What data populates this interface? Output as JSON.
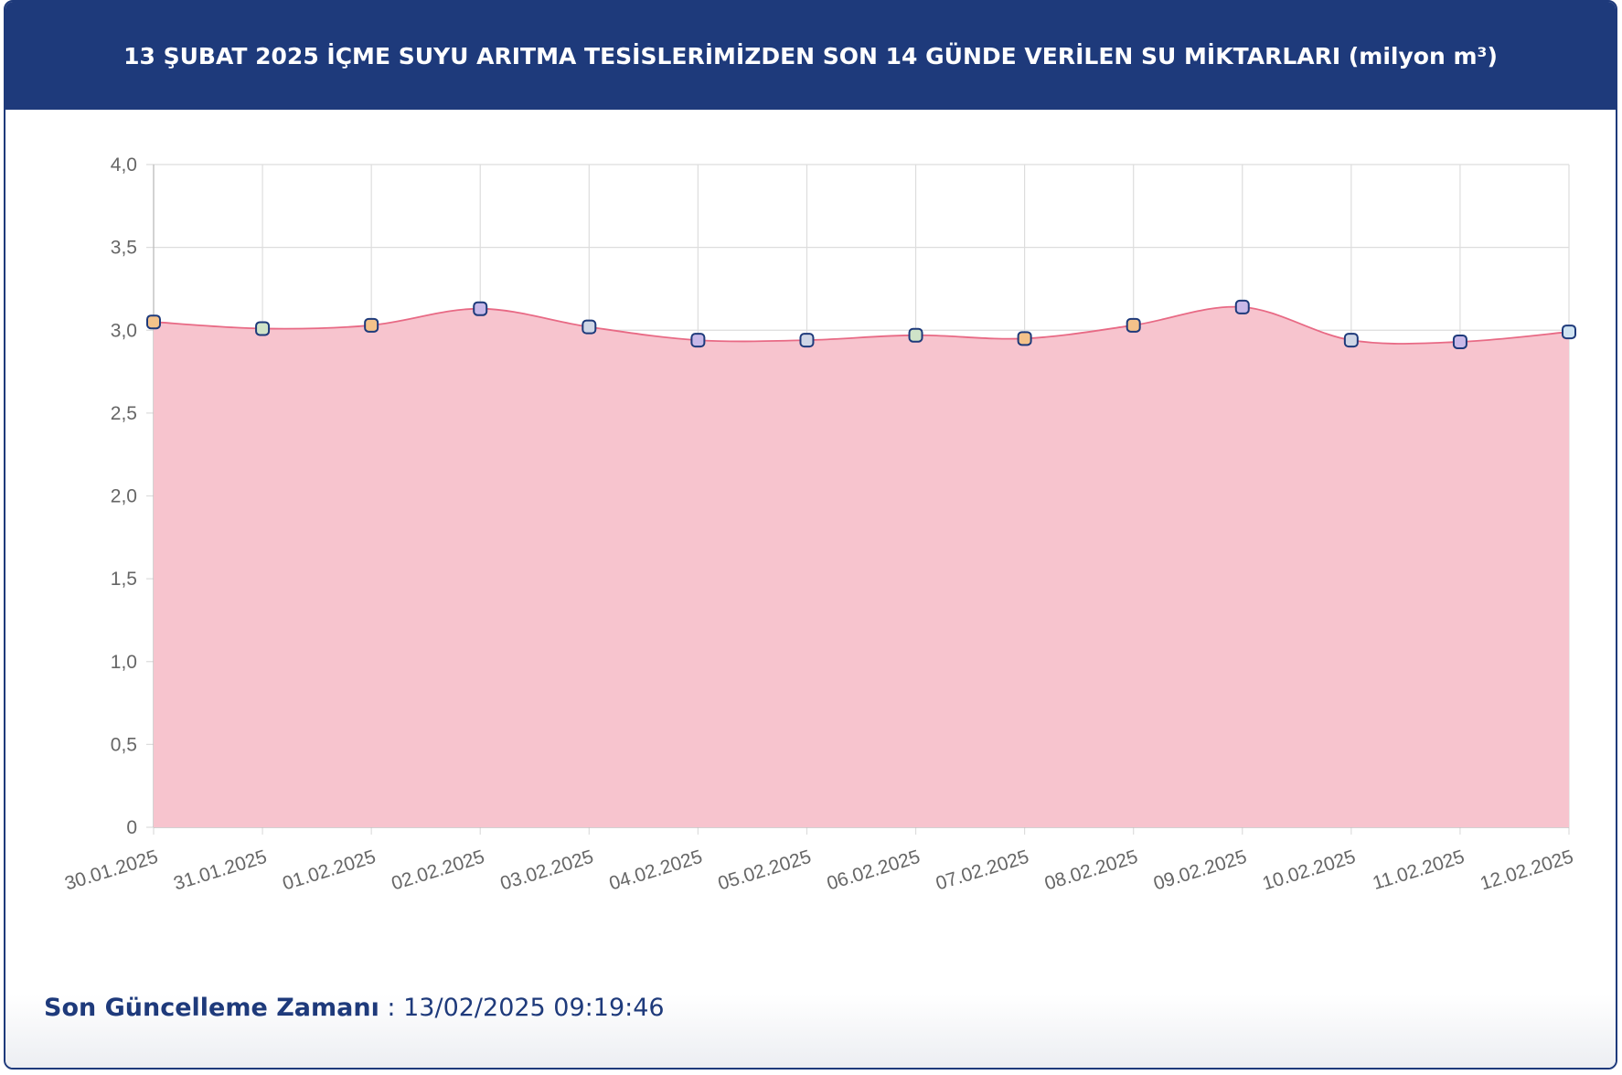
{
  "header": {
    "title": "13 ŞUBAT 2025 İÇME SUYU ARITMA TESİSLERİMİZDEN SON 14 GÜNDE VERİLEN SU MİKTARLARI (milyon m³)"
  },
  "footer": {
    "label": "Son Güncelleme Zamanı",
    "separator": " : ",
    "value": "13/02/2025 09:19:46"
  },
  "colors": {
    "header_bg": "#1e3a7b",
    "area_fill": "#f7c4ce",
    "line": "#e86a85",
    "marker_border": "#1e3a7b",
    "grid": "#dddddd"
  },
  "chart_data": {
    "type": "area",
    "title": "13 ŞUBAT 2025 İÇME SUYU ARITMA TESİSLERİMİZDEN SON 14 GÜNDE VERİLEN SU MİKTARLARI (milyon m³)",
    "x": [
      "30.01.2025",
      "31.01.2025",
      "01.02.2025",
      "02.02.2025",
      "03.02.2025",
      "04.02.2025",
      "05.02.2025",
      "06.02.2025",
      "07.02.2025",
      "08.02.2025",
      "09.02.2025",
      "10.02.2025",
      "11.02.2025",
      "12.02.2025"
    ],
    "series": [
      {
        "values": [
          3.05,
          3.01,
          3.03,
          3.13,
          3.02,
          2.94,
          2.94,
          2.97,
          2.95,
          3.03,
          3.14,
          2.94,
          2.93,
          2.99
        ],
        "marker_colors": [
          "#f4c28a",
          "#cfe3c8",
          "#f4c28a",
          "#c8b8e8",
          "#cfd6e6",
          "#c8b8e8",
          "#cfd6e6",
          "#cfe3c8",
          "#f4c28a",
          "#f4c28a",
          "#c8b8e8",
          "#cfd6e6",
          "#c8b8e8",
          "#cfe3f2"
        ]
      }
    ],
    "ylim": [
      0,
      4
    ],
    "yticks": [
      "0",
      "0,5",
      "1,0",
      "1,5",
      "2,0",
      "2,5",
      "3,0",
      "3,5",
      "4,0"
    ],
    "ytick_values": [
      0,
      0.5,
      1.0,
      1.5,
      2.0,
      2.5,
      3.0,
      3.5,
      4.0
    ],
    "xlabel": "",
    "ylabel": "",
    "grid": true,
    "legend": "none"
  }
}
